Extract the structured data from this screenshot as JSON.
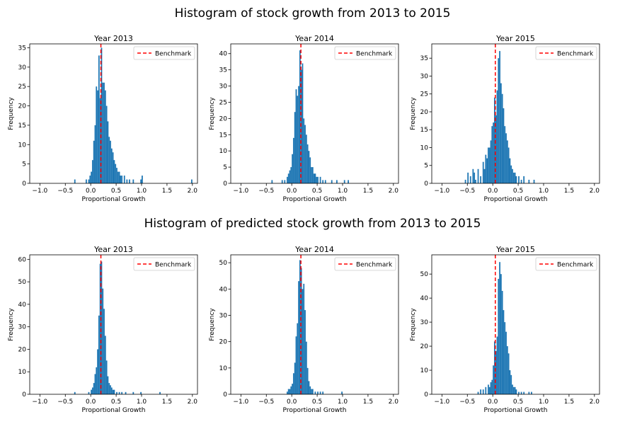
{
  "row_titles": [
    "Histogram of stock growth from 2013 to 2015",
    "Histogram of predicted stock growth from 2013 to 2015"
  ],
  "colors": {
    "bar": "#1f77b4",
    "benchmark": "#ff0000",
    "axis": "#000000"
  },
  "chart_data": [
    {
      "type": "bar",
      "title": "Year 2013",
      "xlabel": "Proportional Growth",
      "ylabel": "Frequency",
      "xlim": [
        -1.2,
        2.1
      ],
      "ylim": [
        0,
        36
      ],
      "xticks": [
        -1.0,
        -0.5,
        0.0,
        0.5,
        1.0,
        1.5,
        2.0
      ],
      "xtick_labels": [
        "−1.0",
        "−0.5",
        "0.0",
        "0.5",
        "1.0",
        "1.5",
        "2.0"
      ],
      "yticks": [
        0,
        5,
        10,
        15,
        20,
        25,
        30,
        35
      ],
      "bin_width": 0.025,
      "bins": [
        [
          -0.325,
          1
        ],
        [
          -0.1,
          1
        ],
        [
          -0.05,
          1
        ],
        [
          -0.025,
          2
        ],
        [
          0.0,
          3
        ],
        [
          0.025,
          6
        ],
        [
          0.05,
          11
        ],
        [
          0.075,
          15
        ],
        [
          0.1,
          25
        ],
        [
          0.125,
          24
        ],
        [
          0.15,
          33
        ],
        [
          0.175,
          22
        ],
        [
          0.2,
          35
        ],
        [
          0.225,
          26
        ],
        [
          0.25,
          26
        ],
        [
          0.275,
          24
        ],
        [
          0.3,
          20
        ],
        [
          0.325,
          16
        ],
        [
          0.35,
          12
        ],
        [
          0.375,
          11
        ],
        [
          0.4,
          9
        ],
        [
          0.425,
          8
        ],
        [
          0.45,
          6
        ],
        [
          0.475,
          5
        ],
        [
          0.5,
          4
        ],
        [
          0.525,
          3
        ],
        [
          0.55,
          3
        ],
        [
          0.575,
          2
        ],
        [
          0.6,
          2
        ],
        [
          0.65,
          2
        ],
        [
          0.7,
          1
        ],
        [
          0.75,
          1
        ],
        [
          0.825,
          1
        ],
        [
          0.975,
          1
        ],
        [
          1.0,
          2
        ],
        [
          1.975,
          1
        ]
      ],
      "benchmark": 0.2,
      "legend": [
        "Benchmark"
      ],
      "legend_position": "top-right"
    },
    {
      "type": "bar",
      "title": "Year 2014",
      "xlabel": "Proportional Growth",
      "ylabel": "Frequency",
      "xlim": [
        -1.2,
        2.1
      ],
      "ylim": [
        0,
        43
      ],
      "xticks": [
        -1.0,
        -0.5,
        0.0,
        0.5,
        1.0,
        1.5,
        2.0
      ],
      "xtick_labels": [
        "−1.0",
        "−0.5",
        "0.0",
        "0.5",
        "1.0",
        "1.5",
        "2.0"
      ],
      "yticks": [
        0,
        5,
        10,
        15,
        20,
        25,
        30,
        35,
        40
      ],
      "bin_width": 0.025,
      "bins": [
        [
          -0.4,
          1
        ],
        [
          -0.2,
          1
        ],
        [
          -0.15,
          1
        ],
        [
          -0.1,
          2
        ],
        [
          -0.075,
          3
        ],
        [
          -0.05,
          4
        ],
        [
          -0.025,
          5
        ],
        [
          0.0,
          9
        ],
        [
          0.025,
          14
        ],
        [
          0.05,
          22
        ],
        [
          0.075,
          29
        ],
        [
          0.1,
          27
        ],
        [
          0.125,
          30
        ],
        [
          0.15,
          41
        ],
        [
          0.175,
          35
        ],
        [
          0.2,
          37
        ],
        [
          0.225,
          20
        ],
        [
          0.25,
          18
        ],
        [
          0.275,
          15
        ],
        [
          0.3,
          12
        ],
        [
          0.325,
          10
        ],
        [
          0.35,
          8
        ],
        [
          0.375,
          5
        ],
        [
          0.4,
          5
        ],
        [
          0.425,
          3
        ],
        [
          0.45,
          3
        ],
        [
          0.475,
          2
        ],
        [
          0.5,
          2
        ],
        [
          0.55,
          2
        ],
        [
          0.6,
          1
        ],
        [
          0.65,
          1
        ],
        [
          0.775,
          1
        ],
        [
          0.875,
          1
        ],
        [
          1.025,
          1
        ],
        [
          1.1,
          1
        ]
      ],
      "benchmark": 0.18,
      "legend": [
        "Benchmark"
      ],
      "legend_position": "top-right"
    },
    {
      "type": "bar",
      "title": "Year 2015",
      "xlabel": "Proportional Growth",
      "ylabel": "Frequency",
      "xlim": [
        -1.2,
        2.1
      ],
      "ylim": [
        0,
        39
      ],
      "xticks": [
        -1.0,
        -0.5,
        0.0,
        0.5,
        1.0,
        1.5,
        2.0
      ],
      "xtick_labels": [
        "−1.0",
        "−0.5",
        "0.0",
        "0.5",
        "1.0",
        "1.5",
        "2.0"
      ],
      "yticks": [
        0,
        5,
        10,
        15,
        20,
        25,
        30,
        35
      ],
      "bin_width": 0.025,
      "bins": [
        [
          -0.55,
          1
        ],
        [
          -0.5,
          3
        ],
        [
          -0.45,
          2
        ],
        [
          -0.4,
          4
        ],
        [
          -0.375,
          3
        ],
        [
          -0.35,
          1
        ],
        [
          -0.3,
          4
        ],
        [
          -0.25,
          2
        ],
        [
          -0.2,
          6
        ],
        [
          -0.175,
          4
        ],
        [
          -0.15,
          8
        ],
        [
          -0.125,
          7
        ],
        [
          -0.1,
          10
        ],
        [
          -0.075,
          10
        ],
        [
          -0.05,
          12
        ],
        [
          -0.025,
          16
        ],
        [
          0.0,
          17
        ],
        [
          0.025,
          24
        ],
        [
          0.05,
          19
        ],
        [
          0.075,
          26
        ],
        [
          0.1,
          35
        ],
        [
          0.125,
          37
        ],
        [
          0.15,
          28
        ],
        [
          0.175,
          25
        ],
        [
          0.2,
          21
        ],
        [
          0.225,
          16
        ],
        [
          0.25,
          14
        ],
        [
          0.275,
          12
        ],
        [
          0.3,
          10
        ],
        [
          0.325,
          7
        ],
        [
          0.35,
          5
        ],
        [
          0.375,
          4
        ],
        [
          0.4,
          3
        ],
        [
          0.425,
          3
        ],
        [
          0.45,
          2
        ],
        [
          0.5,
          2
        ],
        [
          0.55,
          1
        ],
        [
          0.6,
          2
        ],
        [
          0.7,
          1
        ],
        [
          0.8,
          1
        ]
      ],
      "benchmark": 0.05,
      "legend": [
        "Benchmark"
      ],
      "legend_position": "top-right"
    },
    {
      "type": "bar",
      "title": "Year 2013",
      "xlabel": "Proportional Growth",
      "ylabel": "Frequency",
      "xlim": [
        -1.2,
        2.1
      ],
      "ylim": [
        0,
        62
      ],
      "xticks": [
        -1.0,
        -0.5,
        0.0,
        0.5,
        1.0,
        1.5,
        2.0
      ],
      "xtick_labels": [
        "−1.0",
        "−0.5",
        "0.0",
        "0.5",
        "1.0",
        "1.5",
        "2.0"
      ],
      "yticks": [
        0,
        10,
        20,
        30,
        40,
        50,
        60
      ],
      "bin_width": 0.025,
      "bins": [
        [
          -0.325,
          1
        ],
        [
          -0.05,
          1
        ],
        [
          0.0,
          2
        ],
        [
          0.025,
          3
        ],
        [
          0.05,
          5
        ],
        [
          0.075,
          9
        ],
        [
          0.1,
          12
        ],
        [
          0.125,
          20
        ],
        [
          0.15,
          35
        ],
        [
          0.175,
          58
        ],
        [
          0.2,
          59
        ],
        [
          0.225,
          47
        ],
        [
          0.25,
          38
        ],
        [
          0.275,
          26
        ],
        [
          0.3,
          15
        ],
        [
          0.325,
          8
        ],
        [
          0.35,
          5
        ],
        [
          0.375,
          4
        ],
        [
          0.4,
          3
        ],
        [
          0.425,
          2
        ],
        [
          0.45,
          2
        ],
        [
          0.5,
          1
        ],
        [
          0.55,
          1
        ],
        [
          0.6,
          1
        ],
        [
          0.675,
          1
        ],
        [
          0.825,
          1
        ],
        [
          0.975,
          1
        ],
        [
          1.35,
          1
        ]
      ],
      "benchmark": 0.2,
      "legend": [
        "Benchmark"
      ],
      "legend_position": "top-right"
    },
    {
      "type": "bar",
      "title": "Year 2014",
      "xlabel": "Proportional Growth",
      "ylabel": "Frequency",
      "xlim": [
        -1.2,
        2.1
      ],
      "ylim": [
        0,
        53
      ],
      "xticks": [
        -1.0,
        -0.5,
        0.0,
        0.5,
        1.0,
        1.5,
        2.0
      ],
      "xtick_labels": [
        "−1.0",
        "−0.5",
        "0.0",
        "0.5",
        "1.0",
        "1.5",
        "2.0"
      ],
      "yticks": [
        0,
        10,
        20,
        30,
        40,
        50
      ],
      "bin_width": 0.025,
      "bins": [
        [
          -0.1,
          1
        ],
        [
          -0.075,
          2
        ],
        [
          -0.05,
          2
        ],
        [
          -0.025,
          3
        ],
        [
          0.0,
          4
        ],
        [
          0.025,
          8
        ],
        [
          0.05,
          12
        ],
        [
          0.075,
          22
        ],
        [
          0.1,
          27
        ],
        [
          0.125,
          43
        ],
        [
          0.15,
          51
        ],
        [
          0.175,
          48
        ],
        [
          0.2,
          40
        ],
        [
          0.225,
          42
        ],
        [
          0.25,
          32
        ],
        [
          0.275,
          20
        ],
        [
          0.3,
          10
        ],
        [
          0.325,
          5
        ],
        [
          0.35,
          3
        ],
        [
          0.375,
          2
        ],
        [
          0.4,
          2
        ],
        [
          0.45,
          1
        ],
        [
          0.5,
          1
        ],
        [
          0.55,
          1
        ],
        [
          0.6,
          1
        ],
        [
          0.975,
          1
        ]
      ],
      "benchmark": 0.18,
      "legend": [
        "Benchmark"
      ],
      "legend_position": "top-right"
    },
    {
      "type": "bar",
      "title": "Year 2015",
      "xlabel": "Proportional Growth",
      "ylabel": "Frequency",
      "xlim": [
        -1.2,
        2.1
      ],
      "ylim": [
        0,
        58
      ],
      "xticks": [
        -1.0,
        -0.5,
        0.0,
        0.5,
        1.0,
        1.5,
        2.0
      ],
      "xtick_labels": [
        "−1.0",
        "−0.5",
        "0.0",
        "0.5",
        "1.0",
        "1.5",
        "2.0"
      ],
      "yticks": [
        0,
        10,
        20,
        30,
        40,
        50
      ],
      "bin_width": 0.025,
      "bins": [
        [
          -0.3,
          1
        ],
        [
          -0.25,
          2
        ],
        [
          -0.2,
          2
        ],
        [
          -0.15,
          3
        ],
        [
          -0.1,
          4
        ],
        [
          -0.075,
          3
        ],
        [
          -0.05,
          5
        ],
        [
          -0.025,
          6
        ],
        [
          0.0,
          12
        ],
        [
          0.025,
          22
        ],
        [
          0.05,
          18
        ],
        [
          0.075,
          24
        ],
        [
          0.1,
          48
        ],
        [
          0.125,
          55
        ],
        [
          0.15,
          50
        ],
        [
          0.175,
          43
        ],
        [
          0.2,
          35
        ],
        [
          0.225,
          30
        ],
        [
          0.25,
          26
        ],
        [
          0.275,
          20
        ],
        [
          0.3,
          17
        ],
        [
          0.325,
          10
        ],
        [
          0.35,
          8
        ],
        [
          0.375,
          4
        ],
        [
          0.4,
          3
        ],
        [
          0.425,
          3
        ],
        [
          0.45,
          2
        ],
        [
          0.5,
          1
        ],
        [
          0.55,
          1
        ],
        [
          0.6,
          1
        ],
        [
          0.7,
          1
        ],
        [
          0.75,
          1
        ]
      ],
      "benchmark": 0.05,
      "legend": [
        "Benchmark"
      ],
      "legend_position": "top-right"
    }
  ]
}
